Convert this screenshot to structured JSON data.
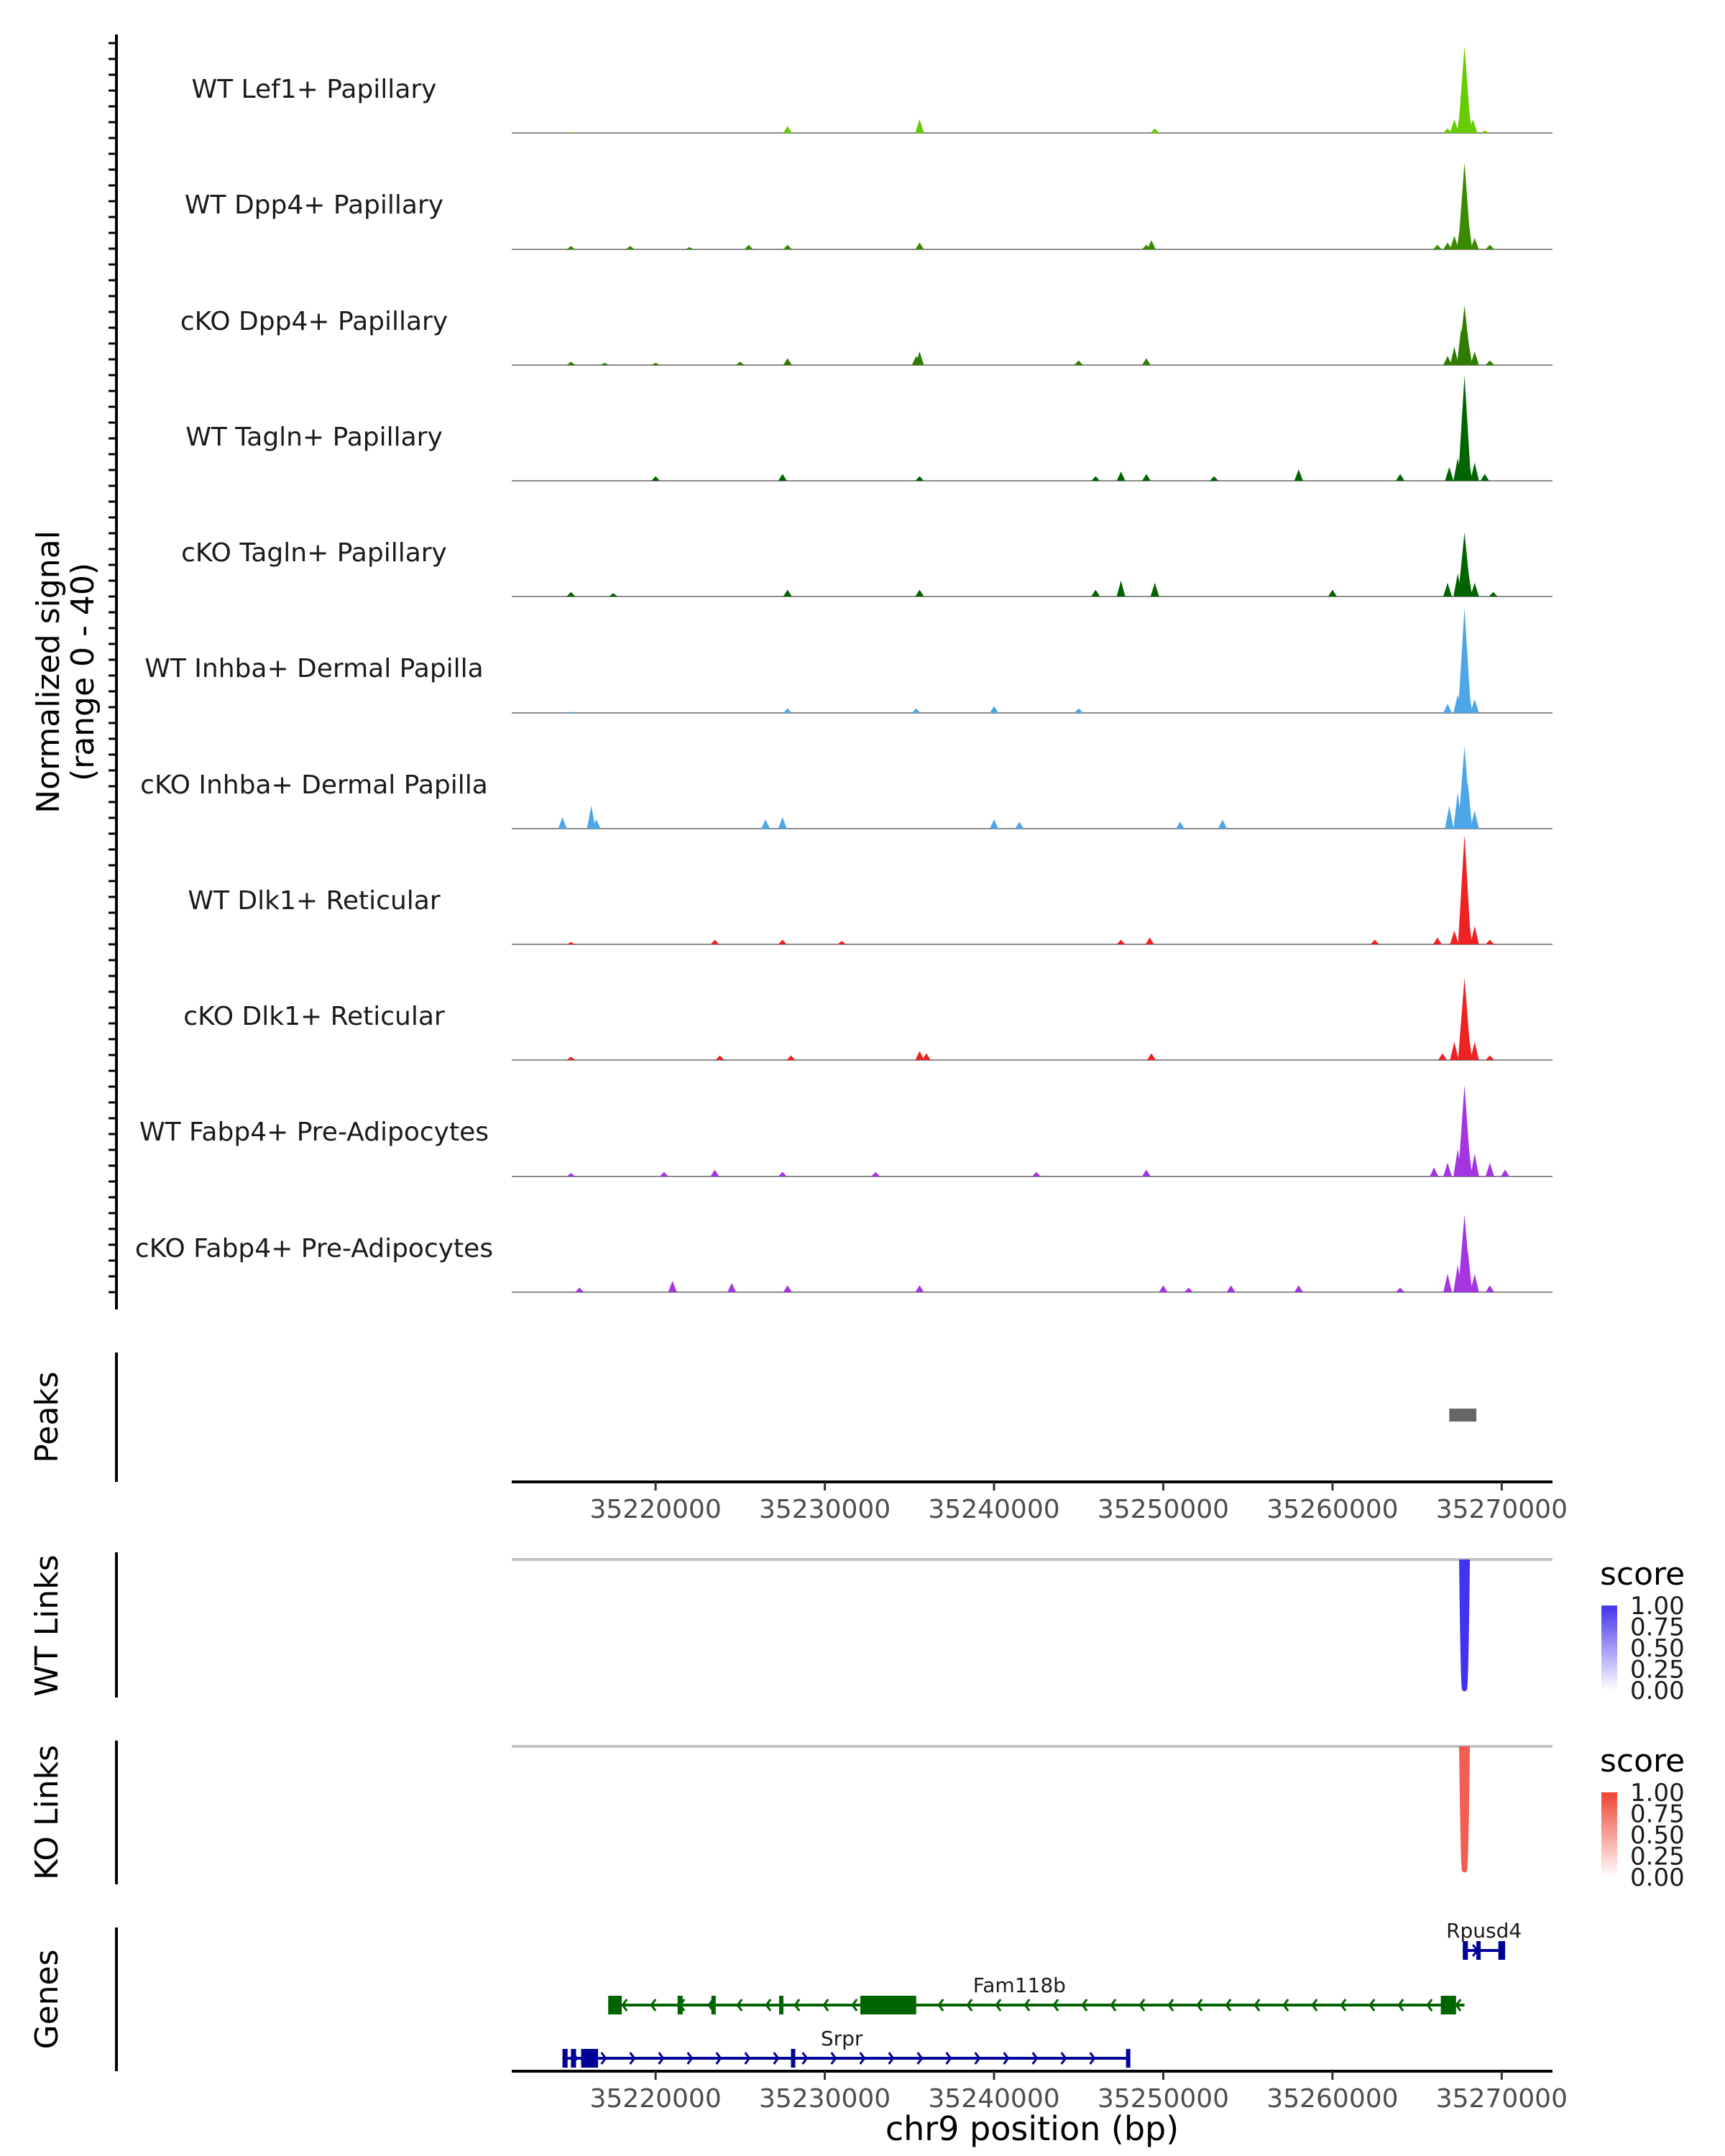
{
  "chart_data": {
    "type": "area",
    "region": "chr9",
    "x_range": [
      35211500,
      35273000
    ],
    "x_ticks": [
      35220000,
      35230000,
      35240000,
      35250000,
      35260000,
      35270000
    ],
    "x_tick_labels": [
      "35220000",
      "35230000",
      "35240000",
      "35250000",
      "35260000",
      "35270000"
    ],
    "coverage": {
      "ylabel_line1": "Normalized signal",
      "ylabel_line2": "(range 0 - 40)",
      "ylim": [
        0,
        40
      ],
      "tracks": [
        {
          "name": "WT Lef1+ Papillary",
          "color": "#66cc00",
          "points": [
            [
              35215000,
              0.2
            ],
            [
              35227800,
              3
            ],
            [
              35235600,
              6
            ],
            [
              35249500,
              2
            ],
            [
              35266800,
              2
            ],
            [
              35267200,
              6
            ],
            [
              35267600,
              12
            ],
            [
              35267800,
              38
            ],
            [
              35268000,
              14
            ],
            [
              35268300,
              6
            ],
            [
              35269000,
              1
            ]
          ]
        },
        {
          "name": "WT Dpp4+ Papillary",
          "color": "#3a8a00",
          "points": [
            [
              35215000,
              1.5
            ],
            [
              35218500,
              1.5
            ],
            [
              35222000,
              1
            ],
            [
              35225500,
              2
            ],
            [
              35227800,
              2
            ],
            [
              35235600,
              3
            ],
            [
              35249000,
              2
            ],
            [
              35249300,
              4
            ],
            [
              35266200,
              2
            ],
            [
              35266800,
              3
            ],
            [
              35267200,
              6
            ],
            [
              35267600,
              14
            ],
            [
              35267800,
              38
            ],
            [
              35268000,
              15
            ],
            [
              35268400,
              5
            ],
            [
              35269300,
              2
            ]
          ]
        },
        {
          "name": "cKO Dpp4+ Papillary",
          "color": "#2e7d00",
          "points": [
            [
              35215000,
              1.5
            ],
            [
              35217000,
              1
            ],
            [
              35220000,
              1
            ],
            [
              35225000,
              1.5
            ],
            [
              35227800,
              3
            ],
            [
              35235400,
              4
            ],
            [
              35235600,
              6
            ],
            [
              35245000,
              2
            ],
            [
              35249000,
              3
            ],
            [
              35266800,
              4
            ],
            [
              35267200,
              8
            ],
            [
              35267600,
              16
            ],
            [
              35267800,
              26
            ],
            [
              35268000,
              12
            ],
            [
              35268400,
              6
            ],
            [
              35269300,
              2
            ]
          ]
        },
        {
          "name": "WT Tagln+ Papillary",
          "color": "#006400",
          "points": [
            [
              35220000,
              2
            ],
            [
              35227500,
              3
            ],
            [
              35235600,
              2
            ],
            [
              35246000,
              2
            ],
            [
              35247500,
              4
            ],
            [
              35249000,
              3
            ],
            [
              35253000,
              2
            ],
            [
              35258000,
              5
            ],
            [
              35264000,
              3
            ],
            [
              35266900,
              6
            ],
            [
              35267400,
              10
            ],
            [
              35267800,
              46
            ],
            [
              35268000,
              12
            ],
            [
              35268400,
              8
            ],
            [
              35269000,
              3
            ]
          ]
        },
        {
          "name": "cKO Tagln+ Papillary",
          "color": "#006400",
          "points": [
            [
              35215000,
              2
            ],
            [
              35217500,
              1.5
            ],
            [
              35227800,
              3
            ],
            [
              35235600,
              3
            ],
            [
              35246000,
              3
            ],
            [
              35247500,
              7
            ],
            [
              35249500,
              6
            ],
            [
              35260000,
              3
            ],
            [
              35266800,
              6
            ],
            [
              35267400,
              10
            ],
            [
              35267800,
              28
            ],
            [
              35268000,
              12
            ],
            [
              35268400,
              6
            ],
            [
              35269500,
              2
            ]
          ]
        },
        {
          "name": "WT Inhba+ Dermal Papilla",
          "color": "#4da6e8",
          "points": [
            [
              35215000,
              0.5
            ],
            [
              35227800,
              2
            ],
            [
              35235400,
              2
            ],
            [
              35240000,
              3
            ],
            [
              35245000,
              2
            ],
            [
              35266800,
              4
            ],
            [
              35267400,
              8
            ],
            [
              35267800,
              46
            ],
            [
              35268000,
              14
            ],
            [
              35268400,
              6
            ]
          ]
        },
        {
          "name": "cKO Inhba+ Dermal Papilla",
          "color": "#4da6e8",
          "points": [
            [
              35214500,
              5
            ],
            [
              35216200,
              10
            ],
            [
              35216500,
              4
            ],
            [
              35226500,
              4
            ],
            [
              35227500,
              5
            ],
            [
              35240000,
              4
            ],
            [
              35241500,
              3
            ],
            [
              35251000,
              3
            ],
            [
              35253500,
              4
            ],
            [
              35266900,
              10
            ],
            [
              35267400,
              16
            ],
            [
              35267800,
              36
            ],
            [
              35268000,
              20
            ],
            [
              35268400,
              8
            ]
          ]
        },
        {
          "name": "WT Dlk1+ Reticular",
          "color": "#ee2222",
          "points": [
            [
              35215000,
              1
            ],
            [
              35223500,
              2
            ],
            [
              35227500,
              2
            ],
            [
              35231000,
              1.5
            ],
            [
              35247500,
              2
            ],
            [
              35249200,
              3
            ],
            [
              35262500,
              2
            ],
            [
              35266200,
              3
            ],
            [
              35267200,
              6
            ],
            [
              35267800,
              48
            ],
            [
              35268000,
              14
            ],
            [
              35268400,
              8
            ],
            [
              35269300,
              2
            ]
          ]
        },
        {
          "name": "cKO Dlk1+ Reticular",
          "color": "#ee2222",
          "points": [
            [
              35215000,
              1.5
            ],
            [
              35223800,
              2
            ],
            [
              35228000,
              2
            ],
            [
              35235600,
              4
            ],
            [
              35236000,
              3
            ],
            [
              35249300,
              3
            ],
            [
              35266500,
              3
            ],
            [
              35267200,
              8
            ],
            [
              35267800,
              36
            ],
            [
              35268000,
              14
            ],
            [
              35268400,
              8
            ],
            [
              35269300,
              2
            ]
          ]
        },
        {
          "name": "WT Fabp4+ Pre-Adipocytes",
          "color": "#a535e0",
          "points": [
            [
              35215000,
              1.5
            ],
            [
              35220500,
              2
            ],
            [
              35223500,
              3
            ],
            [
              35227500,
              2
            ],
            [
              35233000,
              2
            ],
            [
              35242500,
              2
            ],
            [
              35249000,
              3
            ],
            [
              35266000,
              4
            ],
            [
              35266800,
              6
            ],
            [
              35267400,
              12
            ],
            [
              35267800,
              40
            ],
            [
              35268000,
              16
            ],
            [
              35268400,
              10
            ],
            [
              35269300,
              6
            ],
            [
              35270200,
              3
            ]
          ]
        },
        {
          "name": "cKO Fabp4+ Pre-Adipocytes",
          "color": "#a535e0",
          "points": [
            [
              35215500,
              2
            ],
            [
              35221000,
              5
            ],
            [
              35224500,
              4
            ],
            [
              35227800,
              3
            ],
            [
              35235600,
              3
            ],
            [
              35250000,
              3
            ],
            [
              35251500,
              2
            ],
            [
              35254000,
              3
            ],
            [
              35258000,
              3
            ],
            [
              35264000,
              2
            ],
            [
              35266800,
              8
            ],
            [
              35267400,
              12
            ],
            [
              35267800,
              34
            ],
            [
              35268000,
              18
            ],
            [
              35268400,
              8
            ],
            [
              35269300,
              3
            ]
          ]
        }
      ]
    },
    "peaks": {
      "ylabel": "Peaks",
      "regions": [
        [
          35266900,
          35268500
        ]
      ]
    },
    "links": [
      {
        "ylabel": "WT Links",
        "legend_title": "score",
        "color_high": "#4433ee",
        "color_low": "#ffffff",
        "legend_values": [
          "1.00",
          "0.75",
          "0.50",
          "0.25",
          "0.00"
        ],
        "link_pos": 35267800,
        "score": 1.0
      },
      {
        "ylabel": "KO Links",
        "legend_title": "score",
        "color_high": "#ee4433",
        "color_low": "#ffffff",
        "legend_values": [
          "1.00",
          "0.75",
          "0.50",
          "0.25",
          "0.00"
        ],
        "link_pos": 35267800,
        "score": 0.85
      }
    ],
    "genes": {
      "ylabel": "Genes",
      "xlabel": "chr9 position (bp)",
      "items": [
        {
          "name": "Rpusd4",
          "row": 0,
          "start": 35267700,
          "end": 35270200,
          "strand": "+",
          "color": "#000099",
          "exons": [
            [
              35267700,
              35268000
            ],
            [
              35268500,
              35268700
            ],
            [
              35269800,
              35270200
            ]
          ]
        },
        {
          "name": "Fam118b",
          "row": 1,
          "start": 35217200,
          "end": 35267800,
          "strand": "-",
          "color": "#006400",
          "exons": [
            [
              35217200,
              35218000
            ],
            [
              35221300,
              35221600
            ],
            [
              35223300,
              35223500
            ],
            [
              35227300,
              35227500
            ],
            [
              35232100,
              35235400
            ],
            [
              35266400,
              35267300
            ]
          ]
        },
        {
          "name": "Srpr",
          "row": 2,
          "start": 35214500,
          "end": 35248000,
          "strand": "+",
          "color": "#000099",
          "exons": [
            [
              35214500,
              35214800
            ],
            [
              35215000,
              35215300
            ],
            [
              35215600,
              35216600
            ],
            [
              35228000,
              35228200
            ],
            [
              35247800,
              35248000
            ]
          ]
        }
      ]
    }
  }
}
